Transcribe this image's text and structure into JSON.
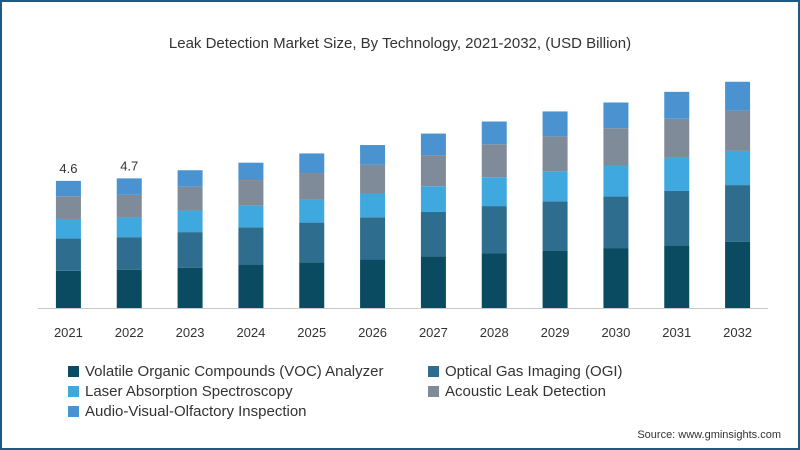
{
  "chart_data": {
    "type": "bar",
    "stacked": true,
    "title": "Leak Detection Market Size, By Technology, 2021-2032, (USD Billion)",
    "xlabel": "",
    "ylabel": "",
    "ylim": [
      0,
      9
    ],
    "grid": false,
    "legend_position": "bottom",
    "categories": [
      "2021",
      "2022",
      "2023",
      "2024",
      "2025",
      "2026",
      "2027",
      "2028",
      "2029",
      "2030",
      "2031",
      "2032"
    ],
    "series": [
      {
        "name": "Volatile Organic Compounds (VOC) Analyzer",
        "color": "#0b4b62",
        "values": [
          1.33,
          1.36,
          1.44,
          1.56,
          1.63,
          1.73,
          1.85,
          1.96,
          2.05,
          2.14,
          2.24,
          2.36
        ]
      },
      {
        "name": "Optical Gas Imaging (OGI)",
        "color": "#2e6d8e",
        "values": [
          1.15,
          1.17,
          1.27,
          1.32,
          1.42,
          1.51,
          1.58,
          1.68,
          1.76,
          1.84,
          1.94,
          2.03
        ]
      },
      {
        "name": "Laser Absorption Spectroscopy",
        "color": "#3fa9df",
        "values": [
          0.7,
          0.7,
          0.77,
          0.77,
          0.81,
          0.85,
          0.92,
          1.03,
          1.07,
          1.11,
          1.18,
          1.22
        ]
      },
      {
        "name": "Acoustic Leak Detection",
        "color": "#7f8b99",
        "values": [
          0.81,
          0.81,
          0.85,
          0.92,
          0.96,
          1.03,
          1.11,
          1.18,
          1.25,
          1.33,
          1.4,
          1.44
        ]
      },
      {
        "name": "Audio-Visual-Olfactory Inspection",
        "color": "#4a93d0",
        "values": [
          0.55,
          0.59,
          0.59,
          0.62,
          0.7,
          0.7,
          0.77,
          0.81,
          0.89,
          0.92,
          0.96,
          1.03
        ]
      }
    ],
    "data_labels": [
      {
        "category": "2021",
        "text": "4.6"
      },
      {
        "category": "2022",
        "text": "4.7"
      }
    ]
  },
  "source_text": "Source: www.gminsights.com"
}
